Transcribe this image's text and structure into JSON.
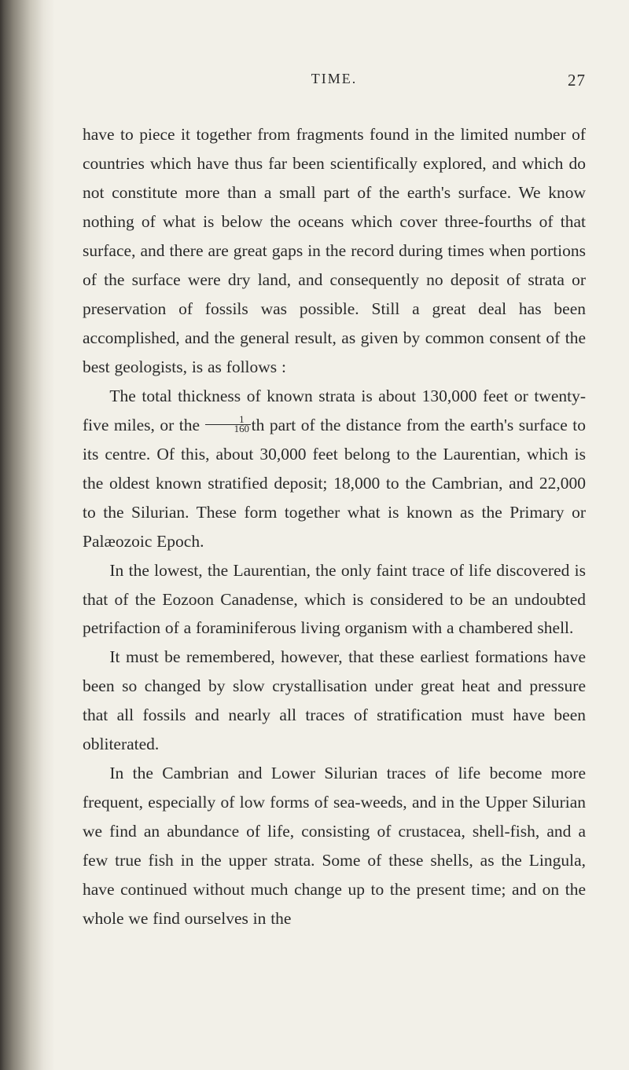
{
  "page": {
    "runningHead": "TIME.",
    "pageNumber": "27"
  },
  "paragraphs": {
    "p1": "have to piece it together from fragments found in the limited number of countries which have thus far been scientifically explored, and which do not constitute more than a small part of the earth's surface. We know nothing of what is below the oceans which cover three-fourths of that surface, and there are great gaps in the record during times when portions of the surface were dry land, and consequently no deposit of strata or preservation of fossils was possible. Still a great deal has been accomplished, and the general result, as given by common consent of the best geologists, is as follows :",
    "p2a": "The total thickness of known strata is about 130,000 feet or twenty-five miles, or the ",
    "p2b": "th part of the distance from the earth's surface to its centre. Of this, about 30,000 feet belong to the Laurentian, which is the oldest known stratified deposit; 18,000 to the Cambrian, and 22,000 to the Silurian. These form together what is known as the Primary or Palæozoic Epoch.",
    "p3": "In the lowest, the Laurentian, the only faint trace of life discovered is that of the Eozoon Canadense, which is considered to be an undoubted petrifaction of a foraminiferous living organism with a chambered shell.",
    "p4": "It must be remembered, however, that these earliest formations have been so changed by slow crystallisation under great heat and pressure that all fossils and nearly all traces of stratification must have been obliterated.",
    "p5": "In the Cambrian and Lower Silurian traces of life become more frequent, especially of low forms of sea-weeds, and in the Upper Silurian we find an abundance of life, consisting of crustacea, shell-fish, and a few true fish in the upper strata. Some of these shells, as the Lingula, have continued without much change up to the present time; and on the whole we find ourselves in the"
  },
  "fraction": {
    "numerator": "1",
    "denominator": "160"
  },
  "style": {
    "pageBg": "#f2f0e8",
    "textColor": "#2a2a2a",
    "fontSize": 21.5,
    "lineHeight": 1.72
  }
}
